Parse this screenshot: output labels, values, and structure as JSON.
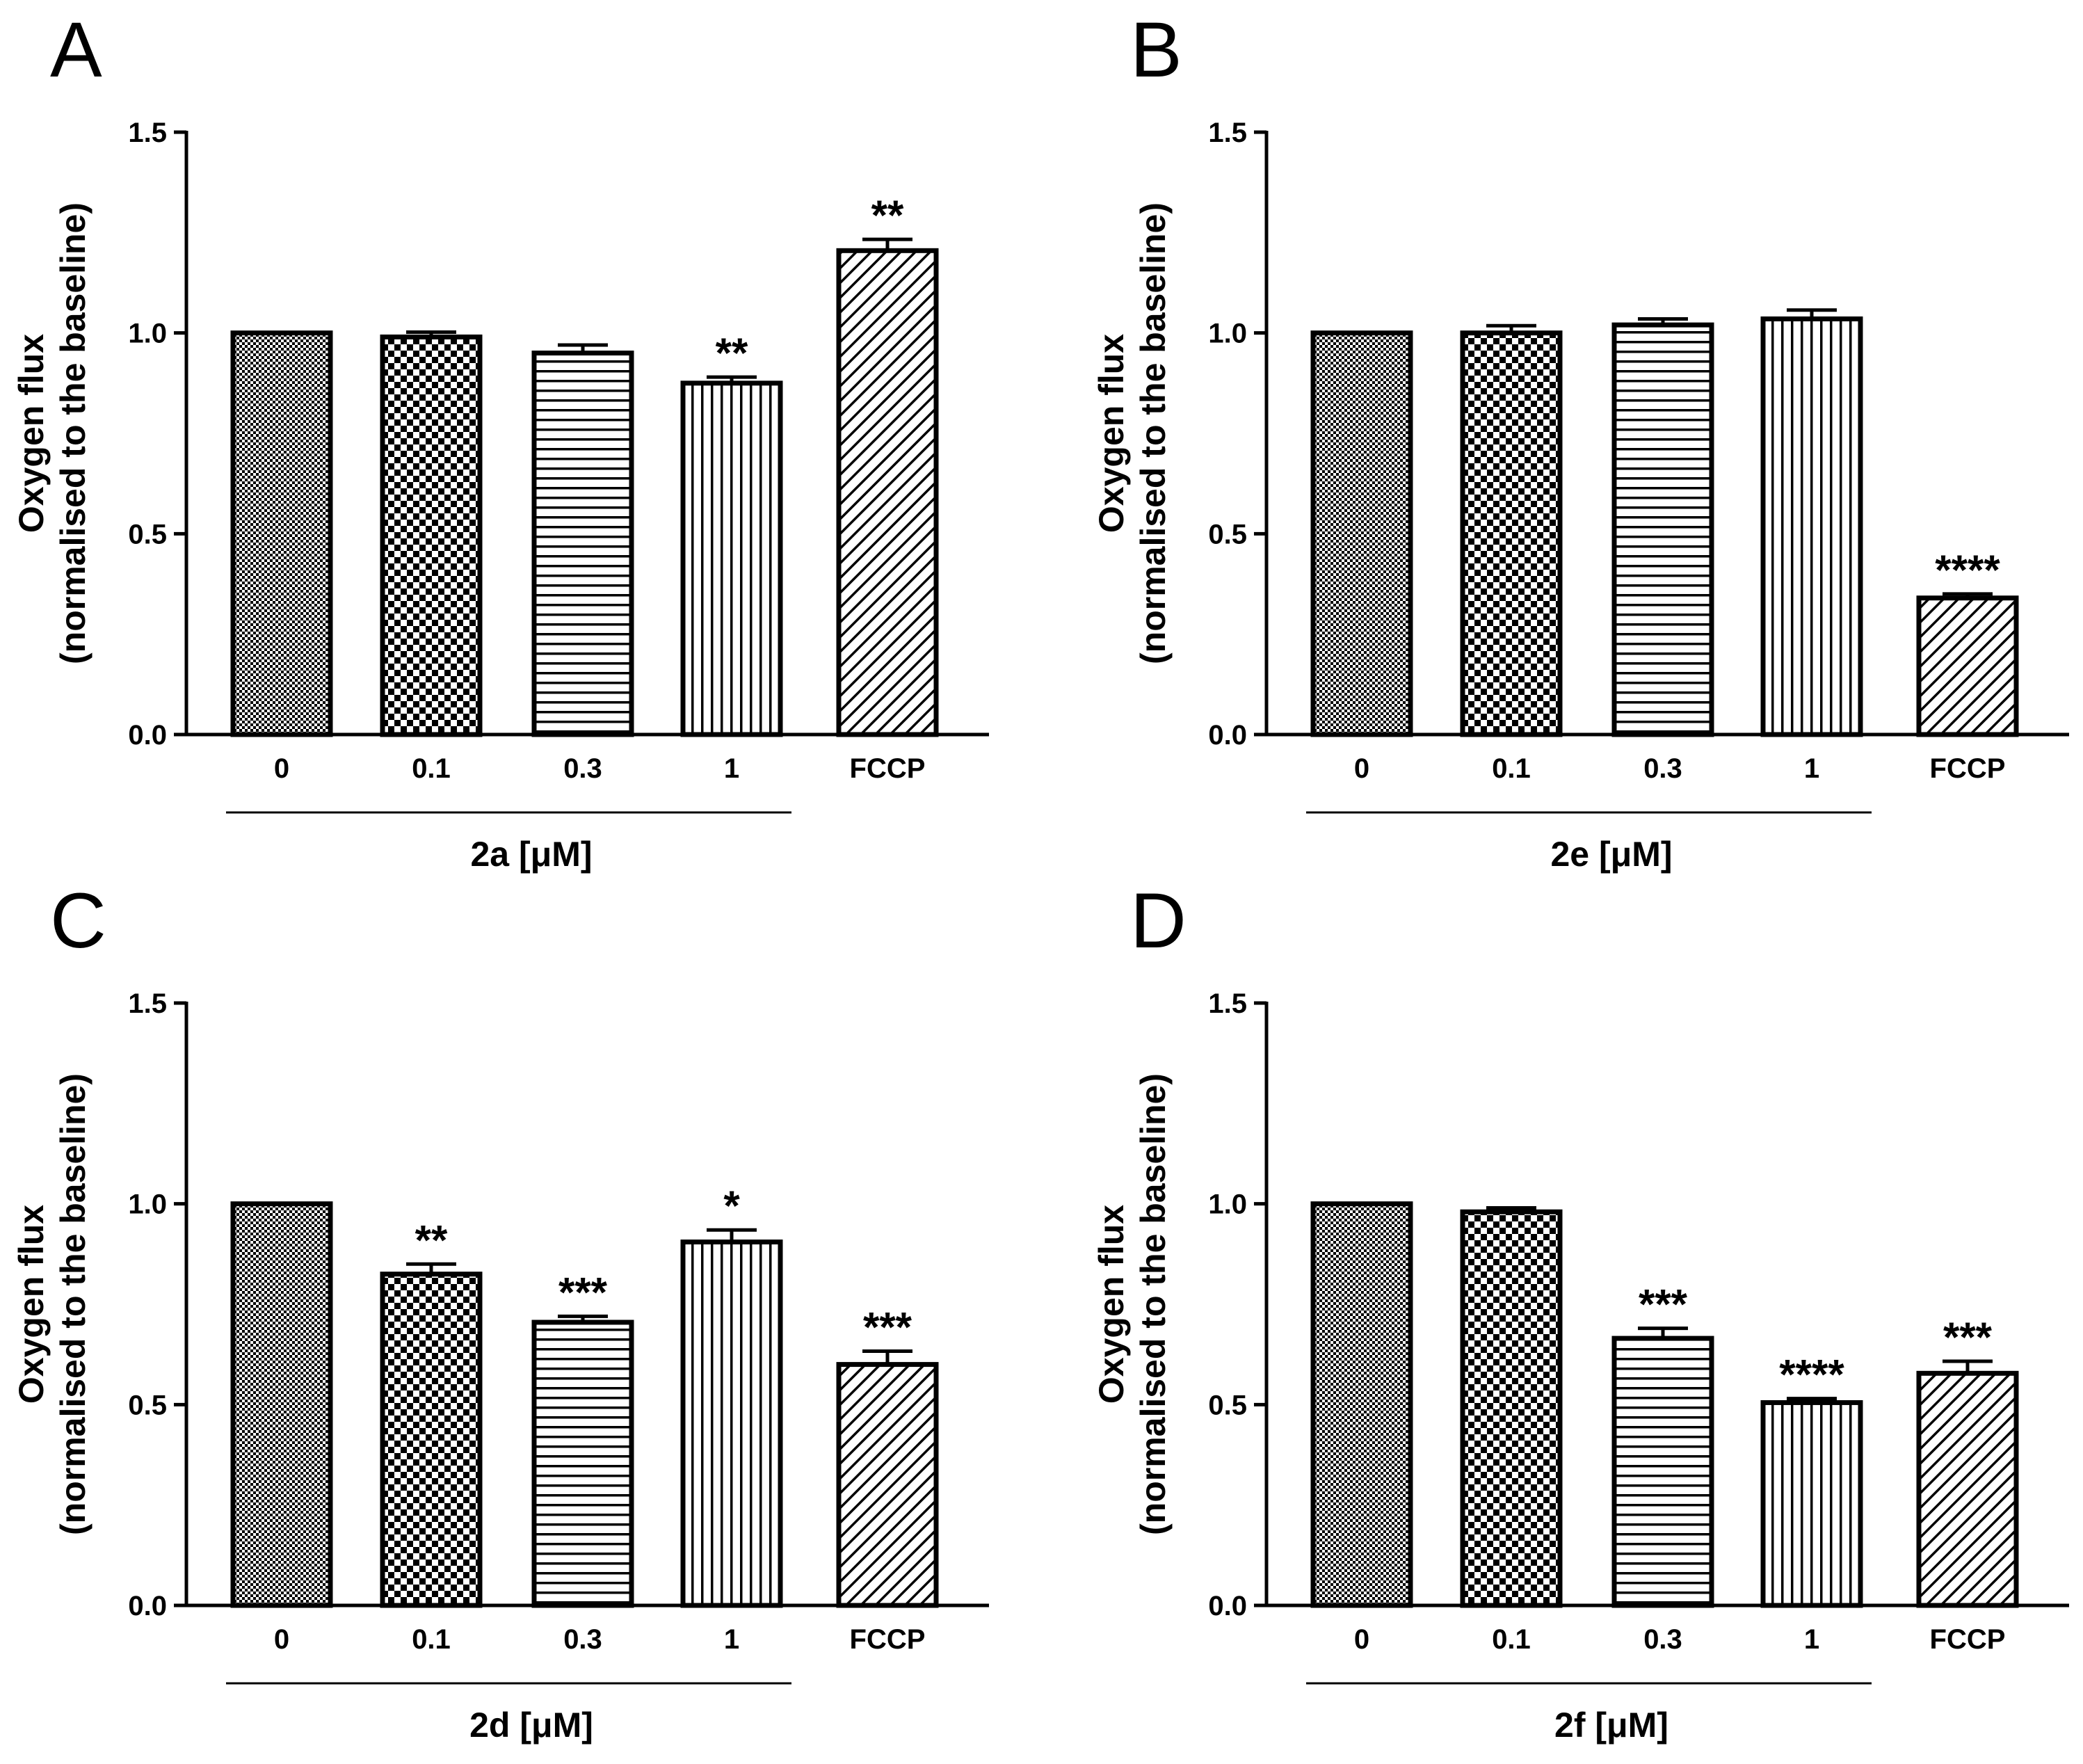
{
  "chart_data": [
    {
      "type": "bar",
      "panel": "A",
      "ylabel": [
        "Oxygen flux",
        "(normalised to the baseline)"
      ],
      "ylim": [
        0,
        1.5
      ],
      "yticks": [
        "0.0",
        "0.5",
        "1.0",
        "1.5"
      ],
      "categories": [
        "0",
        "0.1",
        "0.3",
        "1",
        "FCCP"
      ],
      "values": [
        1.0,
        0.99,
        0.95,
        0.875,
        1.205
      ],
      "errors": [
        0.0,
        0.012,
        0.02,
        0.015,
        0.028
      ],
      "significance": [
        "",
        "",
        "",
        "**",
        "**"
      ],
      "group_label": "2a [μM]",
      "patterns": [
        "dense-check",
        "checker",
        "horizontal",
        "vertical",
        "diagonal"
      ]
    },
    {
      "type": "bar",
      "panel": "B",
      "ylabel": [
        "Oxygen flux",
        "(normalised to the baseline)"
      ],
      "ylim": [
        0,
        1.5
      ],
      "yticks": [
        "0.0",
        "0.5",
        "1.0",
        "1.5"
      ],
      "categories": [
        "0",
        "0.1",
        "0.3",
        "1",
        "FCCP"
      ],
      "values": [
        1.0,
        1.0,
        1.02,
        1.035,
        0.34
      ],
      "errors": [
        0.0,
        0.018,
        0.015,
        0.022,
        0.01
      ],
      "significance": [
        "",
        "",
        "",
        "",
        "****"
      ],
      "group_label": "2e [μM]",
      "patterns": [
        "dense-check",
        "checker",
        "horizontal",
        "vertical",
        "diagonal"
      ]
    },
    {
      "type": "bar",
      "panel": "C",
      "ylabel": [
        "Oxygen flux",
        "(normalised to the baseline)"
      ],
      "ylim": [
        0,
        1.5
      ],
      "yticks": [
        "0.0",
        "0.5",
        "1.0",
        "1.5"
      ],
      "categories": [
        "0",
        "0.1",
        "0.3",
        "1",
        "FCCP"
      ],
      "values": [
        1.0,
        0.825,
        0.705,
        0.905,
        0.6
      ],
      "errors": [
        0.0,
        0.025,
        0.015,
        0.03,
        0.033
      ],
      "significance": [
        "",
        "**",
        "***",
        "*",
        "***"
      ],
      "group_label": "2d [μM]",
      "patterns": [
        "dense-check",
        "checker",
        "horizontal",
        "vertical",
        "diagonal"
      ]
    },
    {
      "type": "bar",
      "panel": "D",
      "ylabel": [
        "Oxygen flux",
        "(normalised to the baseline)"
      ],
      "ylim": [
        0,
        1.5
      ],
      "yticks": [
        "0.0",
        "0.5",
        "1.0",
        "1.5"
      ],
      "categories": [
        "0",
        "0.1",
        "0.3",
        "1",
        "FCCP"
      ],
      "values": [
        1.0,
        0.98,
        0.665,
        0.505,
        0.578
      ],
      "errors": [
        0.0,
        0.01,
        0.025,
        0.01,
        0.03
      ],
      "significance": [
        "",
        "",
        "***",
        "****",
        "***"
      ],
      "group_label": "2f [μM]",
      "patterns": [
        "dense-check",
        "checker",
        "horizontal",
        "vertical",
        "diagonal"
      ]
    }
  ]
}
